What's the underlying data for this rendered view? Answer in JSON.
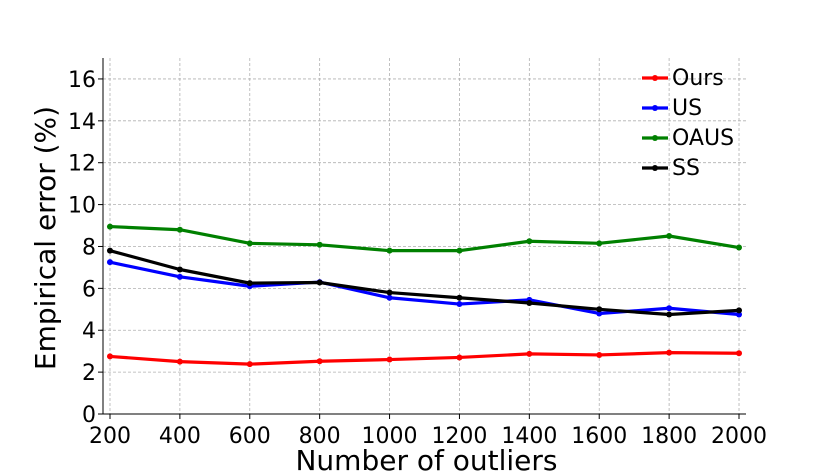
{
  "chart_data": {
    "type": "line",
    "xlabel": "Number of outliers",
    "ylabel": "Empirical error (%)",
    "x": [
      200,
      400,
      600,
      800,
      1000,
      1200,
      1400,
      1600,
      1800,
      2000
    ],
    "xlim": [
      180,
      2020
    ],
    "ylim": [
      0,
      17
    ],
    "yticks": [
      0,
      2,
      4,
      6,
      8,
      10,
      12,
      14,
      16
    ],
    "grid": true,
    "legend_position": "top-right",
    "series": [
      {
        "name": "Ours",
        "color": "#ff0000",
        "values": [
          2.75,
          2.5,
          2.38,
          2.52,
          2.6,
          2.7,
          2.87,
          2.82,
          2.93,
          2.9
        ]
      },
      {
        "name": "US",
        "color": "#0000ff",
        "values": [
          7.25,
          6.55,
          6.1,
          6.3,
          5.55,
          5.25,
          5.45,
          4.8,
          5.05,
          4.75
        ]
      },
      {
        "name": "OAUS",
        "color": "#008000",
        "values": [
          8.95,
          8.8,
          8.15,
          8.08,
          7.8,
          7.8,
          8.25,
          8.15,
          8.5,
          7.95
        ]
      },
      {
        "name": "SS",
        "color": "#000000",
        "values": [
          7.8,
          6.9,
          6.25,
          6.28,
          5.8,
          5.55,
          5.3,
          5.0,
          4.75,
          4.95
        ]
      }
    ]
  }
}
